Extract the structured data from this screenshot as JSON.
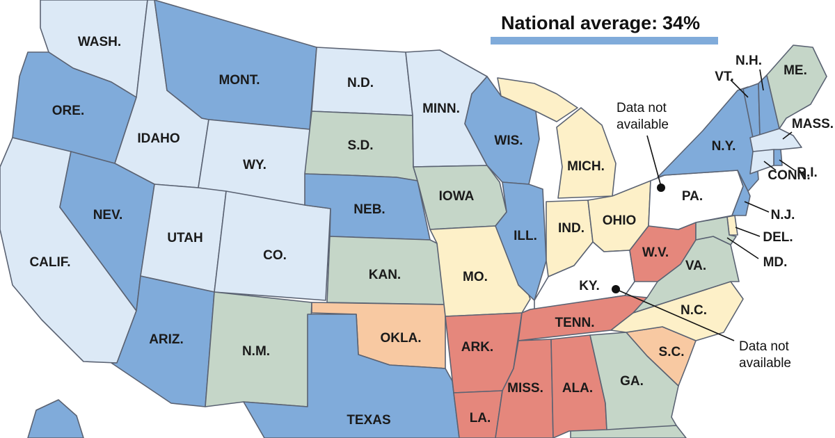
{
  "legend": {
    "national_average_label": "National average:",
    "national_average_value": "34%"
  },
  "colors": {
    "light_blue": "#dce9f6",
    "medium_blue": "#80abda",
    "sage_green": "#c5d6c8",
    "cream": "#fdf0c8",
    "peach": "#f8c9a2",
    "red": "#e5877c",
    "no_data": "#ffffff"
  },
  "states": [
    {
      "key": "wash",
      "label": "WASH.",
      "fill": "light_blue"
    },
    {
      "key": "ore",
      "label": "ORE.",
      "fill": "medium_blue"
    },
    {
      "key": "calif",
      "label": "CALIF.",
      "fill": "light_blue"
    },
    {
      "key": "idaho",
      "label": "IDAHO",
      "fill": "light_blue"
    },
    {
      "key": "nev",
      "label": "NEV.",
      "fill": "medium_blue"
    },
    {
      "key": "mont",
      "label": "MONT.",
      "fill": "medium_blue"
    },
    {
      "key": "wy",
      "label": "WY.",
      "fill": "light_blue"
    },
    {
      "key": "utah",
      "label": "UTAH",
      "fill": "light_blue"
    },
    {
      "key": "co",
      "label": "CO.",
      "fill": "light_blue"
    },
    {
      "key": "ariz",
      "label": "ARIZ.",
      "fill": "medium_blue"
    },
    {
      "key": "nm",
      "label": "N.M.",
      "fill": "sage_green"
    },
    {
      "key": "nd",
      "label": "N.D.",
      "fill": "light_blue"
    },
    {
      "key": "sd",
      "label": "S.D.",
      "fill": "sage_green"
    },
    {
      "key": "neb",
      "label": "NEB.",
      "fill": "medium_blue"
    },
    {
      "key": "kan",
      "label": "KAN.",
      "fill": "sage_green"
    },
    {
      "key": "okla",
      "label": "OKLA.",
      "fill": "peach"
    },
    {
      "key": "texas",
      "label": "TEXAS",
      "fill": "medium_blue"
    },
    {
      "key": "minn",
      "label": "MINN.",
      "fill": "light_blue"
    },
    {
      "key": "iowa",
      "label": "IOWA",
      "fill": "sage_green"
    },
    {
      "key": "mo",
      "label": "MO.",
      "fill": "cream"
    },
    {
      "key": "ark",
      "label": "ARK.",
      "fill": "red"
    },
    {
      "key": "la",
      "label": "LA.",
      "fill": "red"
    },
    {
      "key": "wis",
      "label": "WIS.",
      "fill": "medium_blue"
    },
    {
      "key": "ill",
      "label": "ILL.",
      "fill": "medium_blue"
    },
    {
      "key": "mich",
      "label": "MICH.",
      "fill": "cream"
    },
    {
      "key": "ind",
      "label": "IND.",
      "fill": "cream"
    },
    {
      "key": "ohio",
      "label": "OHIO",
      "fill": "cream"
    },
    {
      "key": "ky",
      "label": "KY.",
      "fill": "no_data"
    },
    {
      "key": "tenn",
      "label": "TENN.",
      "fill": "red"
    },
    {
      "key": "miss",
      "label": "MISS.",
      "fill": "red"
    },
    {
      "key": "ala",
      "label": "ALA.",
      "fill": "red"
    },
    {
      "key": "ga",
      "label": "GA.",
      "fill": "sage_green"
    },
    {
      "key": "sc",
      "label": "S.C.",
      "fill": "peach"
    },
    {
      "key": "nc",
      "label": "N.C.",
      "fill": "cream"
    },
    {
      "key": "va",
      "label": "VA.",
      "fill": "sage_green"
    },
    {
      "key": "wv",
      "label": "W.V.",
      "fill": "red"
    },
    {
      "key": "pa",
      "label": "PA.",
      "fill": "no_data"
    },
    {
      "key": "ny",
      "label": "N.Y.",
      "fill": "medium_blue"
    },
    {
      "key": "nj",
      "label": "N.J.",
      "fill": "medium_blue"
    },
    {
      "key": "del",
      "label": "DEL.",
      "fill": "cream"
    },
    {
      "key": "md",
      "label": "MD.",
      "fill": "sage_green"
    },
    {
      "key": "vt",
      "label": "VT.",
      "fill": "medium_blue"
    },
    {
      "key": "nh",
      "label": "N.H.",
      "fill": "medium_blue"
    },
    {
      "key": "me",
      "label": "ME.",
      "fill": "sage_green"
    },
    {
      "key": "mass",
      "label": "MASS.",
      "fill": "light_blue"
    },
    {
      "key": "ri",
      "label": "R.I.",
      "fill": "medium_blue"
    },
    {
      "key": "conn",
      "label": "CONN.",
      "fill": "light_blue"
    },
    {
      "key": "fla",
      "label": "",
      "fill": "sage_green"
    },
    {
      "key": "alaska",
      "label": "",
      "fill": "medium_blue"
    }
  ],
  "annotations": {
    "pa_note_line1": "Data not",
    "pa_note_line2": "available",
    "ky_note_line1": "Data not",
    "ky_note_line2": "available"
  }
}
